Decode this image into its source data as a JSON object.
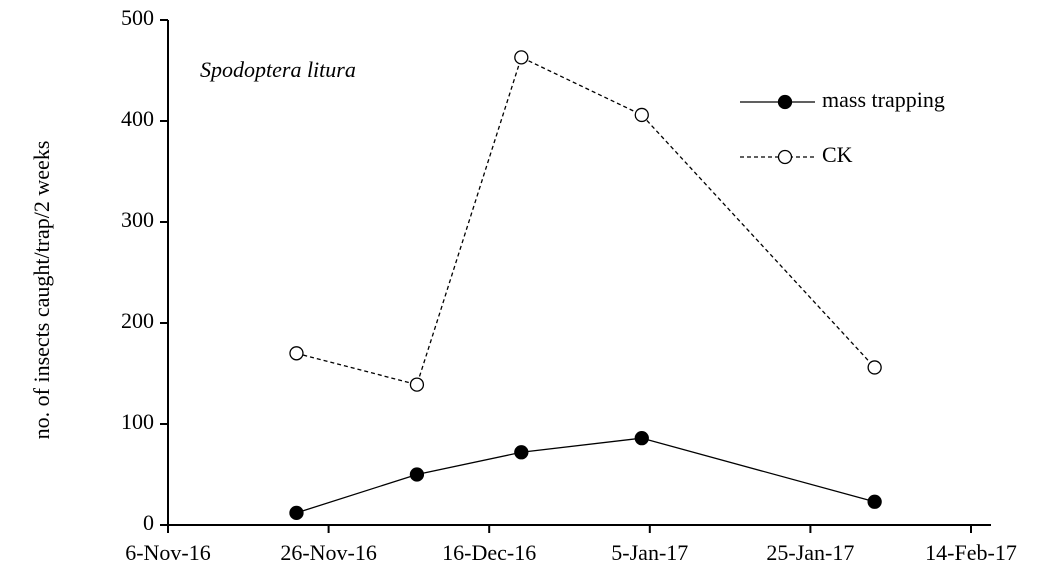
{
  "chart_data": {
    "type": "line",
    "annotation": "Spodoptera litura",
    "y_label": "no. of insects caught/trap/2 weeks",
    "x": [
      "2016-11-22",
      "2016-12-07",
      "2016-12-20",
      "2017-01-04",
      "2017-02-02"
    ],
    "series": [
      {
        "name": "mass trapping",
        "color": "#000000",
        "line_style": "solid",
        "marker_fill": "filled",
        "values": [
          12,
          50,
          72,
          86,
          23
        ]
      },
      {
        "name": "CK",
        "color": "#000000",
        "line_style": "dashed",
        "marker_fill": "open",
        "values": [
          170,
          139,
          463,
          406,
          156
        ]
      }
    ],
    "xlim": [
      "2016-11-06",
      "2017-02-14"
    ],
    "xticks": [
      {
        "value": "2016-11-06",
        "label": "6-Nov-16"
      },
      {
        "value": "2016-11-26",
        "label": "26-Nov-16"
      },
      {
        "value": "2016-12-16",
        "label": "16-Dec-16"
      },
      {
        "value": "2017-01-05",
        "label": "5-Jan-17"
      },
      {
        "value": "2017-01-25",
        "label": "25-Jan-17"
      },
      {
        "value": "2017-02-14",
        "label": "14-Feb-17"
      }
    ],
    "ylim": [
      0,
      500
    ],
    "yticks": [
      0,
      100,
      200,
      300,
      400,
      500
    ],
    "grid": false,
    "legend": "top-right"
  }
}
